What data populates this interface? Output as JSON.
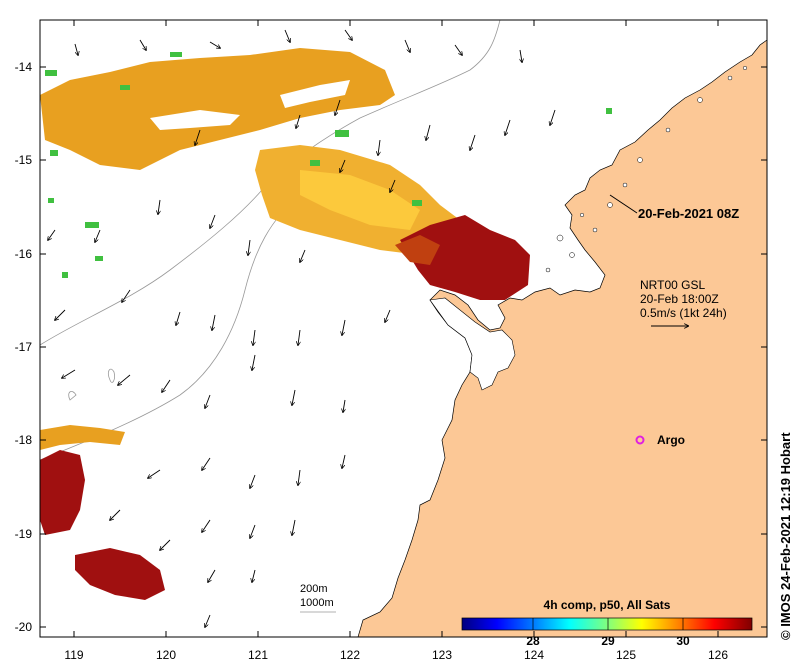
{
  "map": {
    "lat_ticks": [
      "-14",
      "-15",
      "-16",
      "-17",
      "-18",
      "-19",
      "-20"
    ],
    "lon_ticks": [
      "119",
      "120",
      "121",
      "122",
      "123",
      "124",
      "125",
      "126"
    ],
    "date_label": "20-Feb-2021 08Z",
    "current_info": {
      "line1": "NRT00 GSL",
      "line2": "20-Feb 18:00Z",
      "line3": "0.5m/s (1kt 24h)"
    },
    "argo_label": "Argo",
    "depth_labels": [
      "200m",
      "1000m"
    ],
    "credit": "© IMOS 24-Feb-2021 12:19 Hobart",
    "colorbar": {
      "title": "4h comp, p50, All Sats",
      "ticks": [
        "28",
        "29",
        "30"
      ],
      "colors": [
        "#00007f",
        "#0000ff",
        "#007fff",
        "#00ffff",
        "#7fff7f",
        "#ffff00",
        "#ff7f00",
        "#ff0000",
        "#7f0000"
      ]
    },
    "colors": {
      "land": "#fcc896",
      "sst_warm": "#e8a020",
      "sst_hot": "#a01010",
      "argo": "#e020e0"
    }
  }
}
